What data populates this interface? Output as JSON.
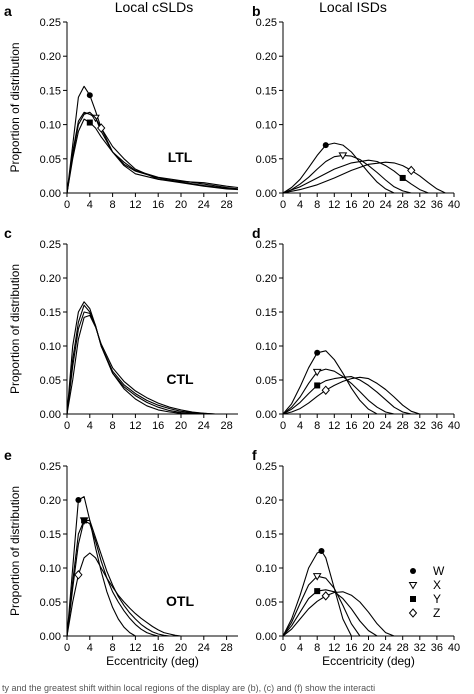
{
  "caption": "ty and the greatest shift within local regions of the display are (b), (c) and (f) show the interacti",
  "legend": [
    "W",
    "X",
    "Y",
    "Z"
  ],
  "column_titles": [
    "Local cSLDs",
    "Local ISDs"
  ],
  "ylabel": "Proportion of distribution",
  "xlabel": "Eccentricity (deg)",
  "chart_data": [
    {
      "panel": "a",
      "type": "line",
      "region": "LTL",
      "title": "",
      "xlabel": "",
      "ylabel": "Proportion of distribution",
      "xlim": [
        0,
        30
      ],
      "ylim": [
        0,
        0.25
      ],
      "xticks": [
        0,
        4,
        8,
        12,
        16,
        20,
        24,
        28
      ],
      "yticks": [
        0.0,
        0.05,
        0.1,
        0.15,
        0.2,
        0.25
      ],
      "series": [
        {
          "marker": "W",
          "x": [
            0,
            1,
            2,
            3,
            4,
            5,
            6,
            8,
            10,
            12,
            16,
            20,
            24,
            28,
            30
          ],
          "y": [
            0,
            0.07,
            0.14,
            0.156,
            0.143,
            0.12,
            0.095,
            0.06,
            0.04,
            0.028,
            0.02,
            0.015,
            0.01,
            0.006,
            0.005
          ],
          "marker_x": 4
        },
        {
          "marker": "X",
          "x": [
            0,
            1,
            2,
            3,
            4,
            5,
            6,
            8,
            10,
            12,
            16,
            20,
            24,
            28,
            30
          ],
          "y": [
            0,
            0.06,
            0.105,
            0.118,
            0.115,
            0.11,
            0.09,
            0.06,
            0.042,
            0.032,
            0.022,
            0.016,
            0.011,
            0.007,
            0.006
          ],
          "marker_x": 5
        },
        {
          "marker": "Y",
          "x": [
            0,
            1,
            2,
            3,
            4,
            5,
            6,
            8,
            10,
            12,
            16,
            20,
            24,
            28,
            30
          ],
          "y": [
            0,
            0.05,
            0.09,
            0.108,
            0.103,
            0.095,
            0.082,
            0.06,
            0.045,
            0.033,
            0.023,
            0.018,
            0.013,
            0.008,
            0.006
          ],
          "marker_x": 4
        },
        {
          "marker": "Z",
          "x": [
            0,
            1,
            2,
            3,
            4,
            5,
            6,
            8,
            10,
            12,
            16,
            20,
            24,
            28,
            30
          ],
          "y": [
            0,
            0.055,
            0.1,
            0.115,
            0.118,
            0.11,
            0.095,
            0.068,
            0.05,
            0.035,
            0.02,
            0.017,
            0.015,
            0.01,
            0.008
          ],
          "marker_x": 6
        }
      ]
    },
    {
      "panel": "b",
      "type": "line",
      "region": "",
      "title": "",
      "xlabel": "",
      "ylabel": "",
      "xlim": [
        0,
        40
      ],
      "ylim": [
        0,
        0.25
      ],
      "xticks": [
        0,
        4,
        8,
        12,
        16,
        20,
        24,
        28,
        32,
        36,
        40
      ],
      "yticks": [
        0.0,
        0.05,
        0.1,
        0.15,
        0.2,
        0.25
      ],
      "series": [
        {
          "marker": "W",
          "x": [
            0,
            2,
            4,
            6,
            8,
            10,
            12,
            14,
            16,
            18,
            20,
            22,
            24,
            26
          ],
          "y": [
            0,
            0.008,
            0.02,
            0.037,
            0.055,
            0.07,
            0.073,
            0.07,
            0.06,
            0.045,
            0.03,
            0.016,
            0.006,
            0
          ],
          "marker_x": 10
        },
        {
          "marker": "X",
          "x": [
            0,
            2,
            4,
            6,
            8,
            10,
            12,
            14,
            16,
            18,
            20,
            22,
            24,
            26,
            28,
            30
          ],
          "y": [
            0,
            0.005,
            0.013,
            0.023,
            0.035,
            0.046,
            0.053,
            0.055,
            0.054,
            0.049,
            0.04,
            0.03,
            0.019,
            0.009,
            0.003,
            0
          ],
          "marker_x": 14
        },
        {
          "marker": "Y",
          "x": [
            0,
            4,
            8,
            12,
            16,
            20,
            22,
            24,
            26,
            28,
            30,
            32,
            34
          ],
          "y": [
            0,
            0.009,
            0.022,
            0.035,
            0.044,
            0.048,
            0.046,
            0.04,
            0.032,
            0.022,
            0.013,
            0.005,
            0
          ],
          "marker_x": 28
        },
        {
          "marker": "Z",
          "x": [
            0,
            4,
            8,
            12,
            16,
            20,
            24,
            26,
            28,
            30,
            32,
            34,
            36,
            38
          ],
          "y": [
            0,
            0.005,
            0.012,
            0.022,
            0.033,
            0.042,
            0.045,
            0.044,
            0.04,
            0.033,
            0.025,
            0.015,
            0.006,
            0
          ],
          "marker_x": 30
        }
      ]
    },
    {
      "panel": "c",
      "type": "line",
      "region": "CTL",
      "title": "",
      "xlabel": "",
      "ylabel": "Proportion of distribution",
      "xlim": [
        0,
        30
      ],
      "ylim": [
        0,
        0.25
      ],
      "xticks": [
        0,
        4,
        8,
        12,
        16,
        20,
        24,
        28
      ],
      "yticks": [
        0.0,
        0.05,
        0.1,
        0.15,
        0.2,
        0.25
      ],
      "series": [
        {
          "marker": "W",
          "x": [
            0,
            1,
            2,
            3,
            4,
            5,
            6,
            8,
            10,
            12,
            14,
            16,
            18,
            20,
            22
          ],
          "y": [
            0,
            0.1,
            0.15,
            0.165,
            0.155,
            0.13,
            0.1,
            0.06,
            0.037,
            0.022,
            0.012,
            0.006,
            0.003,
            0.001,
            0
          ],
          "marker_x": null
        },
        {
          "marker": "X",
          "x": [
            0,
            1,
            2,
            3,
            4,
            5,
            6,
            8,
            10,
            12,
            14,
            16,
            18,
            20,
            22,
            24
          ],
          "y": [
            0,
            0.08,
            0.135,
            0.16,
            0.15,
            0.13,
            0.1,
            0.06,
            0.04,
            0.027,
            0.017,
            0.01,
            0.005,
            0.002,
            0.001,
            0
          ],
          "marker_x": null
        },
        {
          "marker": "Y",
          "x": [
            0,
            1,
            2,
            3,
            4,
            5,
            6,
            8,
            10,
            12,
            14,
            16,
            18,
            20,
            22,
            24,
            26
          ],
          "y": [
            0,
            0.07,
            0.125,
            0.15,
            0.148,
            0.13,
            0.1,
            0.063,
            0.043,
            0.03,
            0.02,
            0.013,
            0.008,
            0.004,
            0.002,
            0.001,
            0
          ],
          "marker_x": null
        },
        {
          "marker": "Z",
          "x": [
            0,
            1,
            2,
            3,
            4,
            5,
            6,
            8,
            10,
            12,
            14,
            16,
            18,
            20,
            22,
            24,
            26
          ],
          "y": [
            0,
            0.05,
            0.11,
            0.142,
            0.145,
            0.128,
            0.103,
            0.068,
            0.048,
            0.034,
            0.024,
            0.016,
            0.01,
            0.006,
            0.003,
            0.001,
            0
          ],
          "marker_x": null
        }
      ]
    },
    {
      "panel": "d",
      "type": "line",
      "region": "",
      "title": "",
      "xlabel": "",
      "ylabel": "",
      "xlim": [
        0,
        40
      ],
      "ylim": [
        0,
        0.25
      ],
      "xticks": [
        0,
        4,
        8,
        12,
        16,
        20,
        24,
        28,
        32,
        36,
        40
      ],
      "yticks": [
        0.0,
        0.05,
        0.1,
        0.15,
        0.2,
        0.25
      ],
      "series": [
        {
          "marker": "W",
          "x": [
            0,
            2,
            4,
            6,
            8,
            10,
            12,
            14,
            16,
            18,
            20,
            22
          ],
          "y": [
            0,
            0.015,
            0.04,
            0.068,
            0.09,
            0.093,
            0.08,
            0.06,
            0.038,
            0.02,
            0.007,
            0
          ],
          "marker_x": 8
        },
        {
          "marker": "X",
          "x": [
            0,
            2,
            4,
            6,
            8,
            10,
            12,
            14,
            16,
            18,
            20,
            22,
            24,
            26
          ],
          "y": [
            0,
            0.01,
            0.025,
            0.045,
            0.062,
            0.066,
            0.063,
            0.055,
            0.045,
            0.033,
            0.02,
            0.01,
            0.003,
            0
          ],
          "marker_x": 8
        },
        {
          "marker": "Y",
          "x": [
            0,
            2,
            4,
            6,
            8,
            10,
            12,
            14,
            16,
            18,
            20,
            22,
            24,
            26,
            28,
            30
          ],
          "y": [
            0,
            0.007,
            0.017,
            0.03,
            0.042,
            0.049,
            0.052,
            0.054,
            0.055,
            0.05,
            0.042,
            0.032,
            0.021,
            0.01,
            0.003,
            0
          ],
          "marker_x": 8
        },
        {
          "marker": "Z",
          "x": [
            0,
            2,
            4,
            6,
            8,
            10,
            12,
            14,
            16,
            18,
            20,
            22,
            24,
            26,
            28,
            30,
            32
          ],
          "y": [
            0,
            0.003,
            0.008,
            0.016,
            0.026,
            0.035,
            0.042,
            0.048,
            0.052,
            0.054,
            0.052,
            0.045,
            0.036,
            0.025,
            0.013,
            0.004,
            0
          ],
          "marker_x": 10
        }
      ]
    },
    {
      "panel": "e",
      "type": "line",
      "region": "OTL",
      "title": "",
      "xlabel": "Eccentricity (deg)",
      "ylabel": "Proportion of distribution",
      "xlim": [
        0,
        30
      ],
      "ylim": [
        0,
        0.25
      ],
      "xticks": [
        0,
        4,
        8,
        12,
        16,
        20,
        24,
        28
      ],
      "yticks": [
        0.0,
        0.05,
        0.1,
        0.15,
        0.2,
        0.25
      ],
      "series": [
        {
          "marker": "W",
          "x": [
            0,
            1,
            2,
            3,
            4,
            5,
            6,
            7,
            8,
            9,
            10,
            11,
            12
          ],
          "y": [
            0,
            0.1,
            0.2,
            0.205,
            0.17,
            0.13,
            0.095,
            0.065,
            0.042,
            0.025,
            0.013,
            0.005,
            0
          ],
          "marker_x": 2
        },
        {
          "marker": "X",
          "x": [
            0,
            1,
            2,
            3,
            4,
            5,
            6,
            7,
            8,
            9,
            10,
            11,
            12,
            13,
            14,
            15,
            16
          ],
          "y": [
            0,
            0.08,
            0.15,
            0.17,
            0.165,
            0.14,
            0.11,
            0.085,
            0.065,
            0.05,
            0.037,
            0.026,
            0.017,
            0.01,
            0.005,
            0.002,
            0
          ],
          "marker_x": 3
        },
        {
          "marker": "Y",
          "x": [
            0,
            1,
            2,
            3,
            4,
            5,
            6,
            7,
            8,
            9,
            10,
            11,
            12,
            13,
            14,
            15,
            16,
            17,
            18
          ],
          "y": [
            0,
            0.07,
            0.135,
            0.17,
            0.17,
            0.145,
            0.12,
            0.095,
            0.075,
            0.058,
            0.045,
            0.034,
            0.025,
            0.017,
            0.011,
            0.006,
            0.003,
            0.001,
            0
          ],
          "marker_x": 3
        },
        {
          "marker": "Z",
          "x": [
            0,
            1,
            2,
            3,
            4,
            5,
            6,
            7,
            8,
            9,
            10,
            11,
            12,
            13,
            14,
            15,
            16,
            17,
            18,
            19,
            20
          ],
          "y": [
            0,
            0.05,
            0.09,
            0.115,
            0.122,
            0.115,
            0.1,
            0.085,
            0.072,
            0.06,
            0.05,
            0.041,
            0.033,
            0.026,
            0.02,
            0.014,
            0.009,
            0.005,
            0.003,
            0.001,
            0
          ],
          "marker_x": 2
        }
      ]
    },
    {
      "panel": "f",
      "type": "line",
      "region": "",
      "title": "",
      "xlabel": "Eccentricity (deg)",
      "ylabel": "",
      "xlim": [
        0,
        40
      ],
      "ylim": [
        0,
        0.25
      ],
      "xticks": [
        0,
        4,
        8,
        12,
        16,
        20,
        24,
        28,
        32,
        36,
        40
      ],
      "yticks": [
        0.0,
        0.05,
        0.1,
        0.15,
        0.2,
        0.25
      ],
      "series": [
        {
          "marker": "W",
          "x": [
            0,
            2,
            4,
            6,
            8,
            9,
            10,
            12,
            14,
            16
          ],
          "y": [
            0,
            0.025,
            0.06,
            0.1,
            0.122,
            0.125,
            0.115,
            0.07,
            0.025,
            0
          ],
          "marker_x": 9
        },
        {
          "marker": "X",
          "x": [
            0,
            2,
            4,
            6,
            8,
            10,
            12,
            14,
            16,
            18
          ],
          "y": [
            0,
            0.02,
            0.048,
            0.075,
            0.088,
            0.085,
            0.07,
            0.045,
            0.018,
            0
          ],
          "marker_x": 8
        },
        {
          "marker": "Y",
          "x": [
            0,
            2,
            4,
            6,
            8,
            10,
            12,
            14,
            16,
            18,
            20,
            22
          ],
          "y": [
            0,
            0.015,
            0.035,
            0.055,
            0.066,
            0.068,
            0.065,
            0.055,
            0.04,
            0.022,
            0.008,
            0
          ],
          "marker_x": 8
        },
        {
          "marker": "Z",
          "x": [
            0,
            2,
            4,
            6,
            8,
            10,
            12,
            14,
            16,
            18,
            20,
            22,
            24,
            26
          ],
          "y": [
            0,
            0.01,
            0.025,
            0.04,
            0.051,
            0.059,
            0.064,
            0.065,
            0.06,
            0.05,
            0.035,
            0.018,
            0.005,
            0
          ],
          "marker_x": 10
        }
      ]
    }
  ]
}
